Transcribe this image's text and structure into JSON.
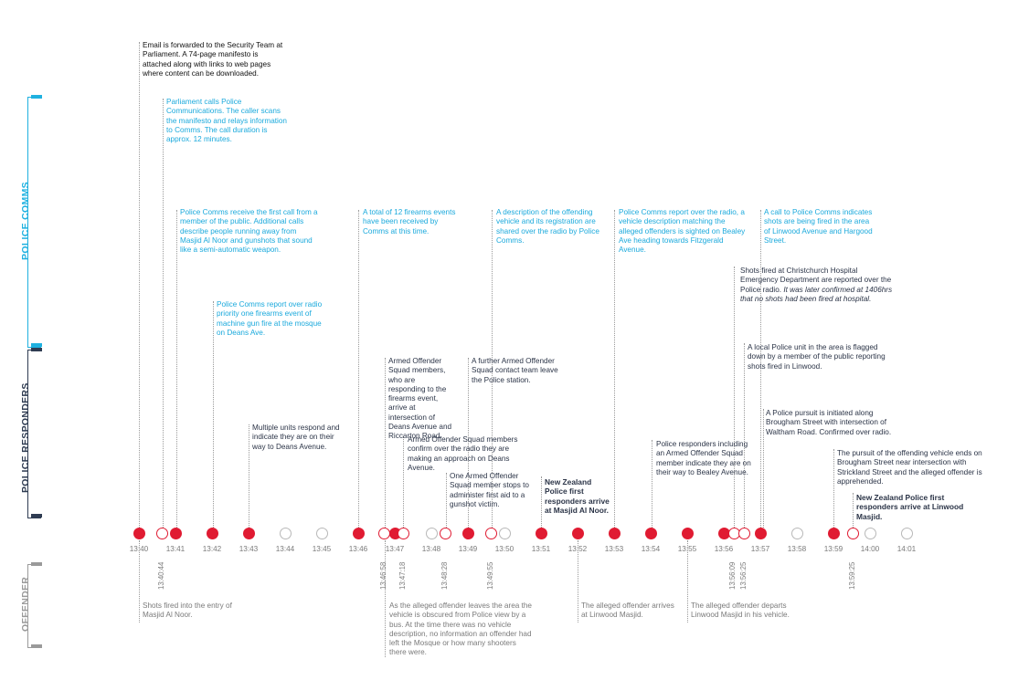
{
  "lanes": {
    "comms": "POLICE COMMS",
    "responders": "POLICE RESPONDERS",
    "offender": "OFFENDER"
  },
  "colors": {
    "red": "#e01b32",
    "comms_blue": "#1fb1e0",
    "navy": "#2f3c52",
    "grey": "#9a9a9a"
  },
  "time_labels": [
    "13:40",
    "13:41",
    "13:42",
    "13:43",
    "13:44",
    "13:45",
    "13:46",
    "13:47",
    "13:48",
    "13:49",
    "13:50",
    "13:51",
    "13:52",
    "13:53",
    "13:54",
    "13:55",
    "13:56",
    "13:57",
    "13:58",
    "13:59",
    "14:00",
    "14:01"
  ],
  "vertical_time_labels": [
    "13:40:44",
    "13:46:58",
    "13:47:18",
    "13:48:28",
    "13:49:55",
    "13:56:09",
    "13:56:25",
    "13:59:25"
  ],
  "events_above": {
    "email": "Email is forwarded to the Security Team at Parliament. A 74-page manifesto is attached along with links to web pages where content can be downloaded.",
    "parliament_calls": "Parliament calls Police Communications. The caller scans the manifesto and relays information to Comms. The call duration is approx. 12 minutes.",
    "first_call": "Police Comms receive the first call from a member of the public. Additional calls describe people running away from Masjid Al Noor and gunshots that sound like a semi-automatic weapon.",
    "machine_gun": "Police Comms report over radio priority one firearms event of machine gun fire at the mosque on Deans Ave.",
    "multiple_units": "Multiple units respond and indicate they are on their way to Deans Avenue.",
    "twelve_events": "A total of 12 firearms events have been received by Comms at this time.",
    "aos_arrive": "Armed Offender Squad members, who are responding to the firearms event, arrive at intersection of Deans Avenue and Riccarton Road.",
    "aos_confirm": "Armed Offender Squad members confirm over the radio they are making an approach on Deans Avenue.",
    "aos_stops": "One Armed Offender Squad member stops to administer first aid to a gunshot victim.",
    "aos_team_leave": "A further Armed Offender Squad contact team leave the Police station.",
    "vehicle_description": "A description of the offending vehicle and its registration are shared over the radio by Police Comms.",
    "first_responders_noor": "New Zealand Police first responders arrive at Masjid Al Noor.",
    "bealey_sighted": "Police Comms report over the radio, a vehicle description matching the alleged offenders is sighted on Bealey Ave heading towards Fitzgerald Avenue.",
    "on_way_bealey": "Police responders including an Armed Offender Squad member indicate they are on their way to Bealey Avenue.",
    "hospital_prefix": "Shots fired at Christchurch Hospital Emergency Department are reported over the Police radio.",
    "hospital_italic": "It was later confirmed at 1406hrs that no shots had been fired at hospital.",
    "local_unit": "A local Police unit in the area is flagged down by a member of the public reporting shots fired in Linwood.",
    "call_linwood": "A call to Police Comms indicates shots are being fired in the area of Linwood Avenue and Hargood Street.",
    "pursuit_initiated": "A Police pursuit is initiated along Brougham Street with intersection of Waltham Road. Confirmed over radio.",
    "pursuit_ends": "The pursuit of the offending vehicle ends on Brougham Street near intersection with Strickland Street and the alleged offender is apprehended.",
    "first_responders_linwood": "New Zealand Police first responders arrive at Linwood Masjid."
  },
  "events_below": {
    "shots_fired": "Shots fired into the entry of Masjid Al Noor.",
    "leaves_area": "As the alleged offender leaves the area the vehicle is obscured from Police view by a bus. At the time there was no vehicle description, no information an offender had left the Mosque or how many shooters there were.",
    "arrives_linwood": "The alleged offender arrives at Linwood Masjid.",
    "departs_linwood": "The alleged offender departs Linwood Masjid in his vehicle."
  }
}
